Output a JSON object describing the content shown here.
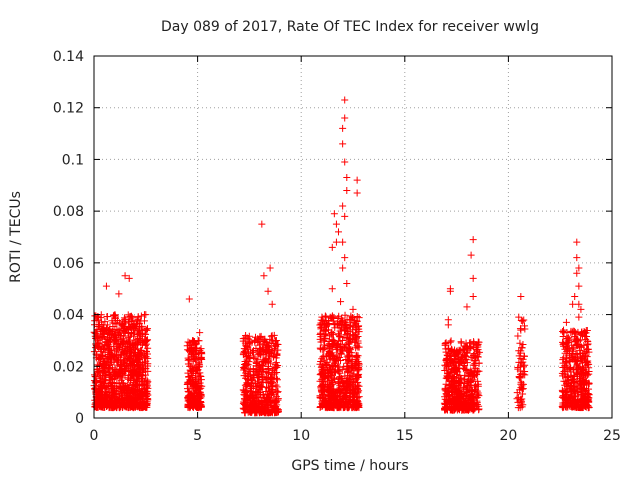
{
  "chart_data": {
    "type": "scatter",
    "title": "Day 089 of 2017, Rate Of TEC Index for receiver wwlg",
    "xlabel": "GPS time / hours",
    "ylabel": "ROTI / TECUs",
    "xlim": [
      0,
      25
    ],
    "ylim": [
      0,
      0.14
    ],
    "xticks": [
      "0",
      "5",
      "10",
      "15",
      "20",
      "25"
    ],
    "yticks": [
      "0",
      "0.02",
      "0.04",
      "0.06",
      "0.08",
      "0.1",
      "0.12",
      "0.14"
    ],
    "grid": true,
    "marker": "+",
    "color": "#ff0000",
    "clusters": [
      {
        "x_range": [
          0.0,
          2.6
        ],
        "y_range": [
          0.004,
          0.04
        ],
        "count": 1100
      },
      {
        "x_range": [
          4.5,
          5.2
        ],
        "y_range": [
          0.004,
          0.03
        ],
        "count": 260
      },
      {
        "x_range": [
          7.2,
          8.9
        ],
        "y_range": [
          0.002,
          0.032
        ],
        "count": 520
      },
      {
        "x_range": [
          10.9,
          12.8
        ],
        "y_range": [
          0.004,
          0.04
        ],
        "count": 720
      },
      {
        "x_range": [
          16.9,
          18.6
        ],
        "y_range": [
          0.003,
          0.03
        ],
        "count": 520
      },
      {
        "x_range": [
          20.4,
          20.8
        ],
        "y_range": [
          0.004,
          0.038
        ],
        "count": 60
      },
      {
        "x_range": [
          22.6,
          23.9
        ],
        "y_range": [
          0.004,
          0.034
        ],
        "count": 420
      }
    ],
    "outliers": [
      {
        "x": 0.6,
        "y": 0.051
      },
      {
        "x": 1.2,
        "y": 0.048
      },
      {
        "x": 1.5,
        "y": 0.055
      },
      {
        "x": 1.7,
        "y": 0.054
      },
      {
        "x": 2.5,
        "y": 0.04
      },
      {
        "x": 4.6,
        "y": 0.046
      },
      {
        "x": 5.1,
        "y": 0.033
      },
      {
        "x": 8.1,
        "y": 0.075
      },
      {
        "x": 8.2,
        "y": 0.055
      },
      {
        "x": 8.5,
        "y": 0.058
      },
      {
        "x": 8.4,
        "y": 0.049
      },
      {
        "x": 8.6,
        "y": 0.044
      },
      {
        "x": 11.6,
        "y": 0.079
      },
      {
        "x": 11.7,
        "y": 0.075
      },
      {
        "x": 11.8,
        "y": 0.072
      },
      {
        "x": 11.7,
        "y": 0.068
      },
      {
        "x": 11.5,
        "y": 0.066
      },
      {
        "x": 11.5,
        "y": 0.05
      },
      {
        "x": 12.0,
        "y": 0.082
      },
      {
        "x": 12.1,
        "y": 0.078
      },
      {
        "x": 12.0,
        "y": 0.068
      },
      {
        "x": 12.1,
        "y": 0.062
      },
      {
        "x": 12.0,
        "y": 0.058
      },
      {
        "x": 12.2,
        "y": 0.052
      },
      {
        "x": 12.1,
        "y": 0.123
      },
      {
        "x": 12.1,
        "y": 0.116
      },
      {
        "x": 12.0,
        "y": 0.112
      },
      {
        "x": 12.0,
        "y": 0.106
      },
      {
        "x": 12.1,
        "y": 0.099
      },
      {
        "x": 12.2,
        "y": 0.093
      },
      {
        "x": 12.2,
        "y": 0.088
      },
      {
        "x": 12.7,
        "y": 0.092
      },
      {
        "x": 12.7,
        "y": 0.087
      },
      {
        "x": 11.9,
        "y": 0.045
      },
      {
        "x": 12.5,
        "y": 0.042
      },
      {
        "x": 11.0,
        "y": 0.039
      },
      {
        "x": 17.2,
        "y": 0.05
      },
      {
        "x": 17.2,
        "y": 0.049
      },
      {
        "x": 17.1,
        "y": 0.038
      },
      {
        "x": 17.1,
        "y": 0.036
      },
      {
        "x": 18.0,
        "y": 0.043
      },
      {
        "x": 18.3,
        "y": 0.069
      },
      {
        "x": 18.2,
        "y": 0.063
      },
      {
        "x": 18.3,
        "y": 0.054
      },
      {
        "x": 18.3,
        "y": 0.047
      },
      {
        "x": 20.6,
        "y": 0.047
      },
      {
        "x": 20.5,
        "y": 0.039
      },
      {
        "x": 20.6,
        "y": 0.034
      },
      {
        "x": 20.5,
        "y": 0.026
      },
      {
        "x": 20.6,
        "y": 0.023
      },
      {
        "x": 23.3,
        "y": 0.068
      },
      {
        "x": 23.3,
        "y": 0.062
      },
      {
        "x": 23.4,
        "y": 0.058
      },
      {
        "x": 23.3,
        "y": 0.056
      },
      {
        "x": 23.4,
        "y": 0.051
      },
      {
        "x": 23.2,
        "y": 0.047
      },
      {
        "x": 23.1,
        "y": 0.044
      },
      {
        "x": 23.4,
        "y": 0.044
      },
      {
        "x": 23.5,
        "y": 0.042
      },
      {
        "x": 23.4,
        "y": 0.039
      },
      {
        "x": 22.8,
        "y": 0.037
      }
    ]
  }
}
